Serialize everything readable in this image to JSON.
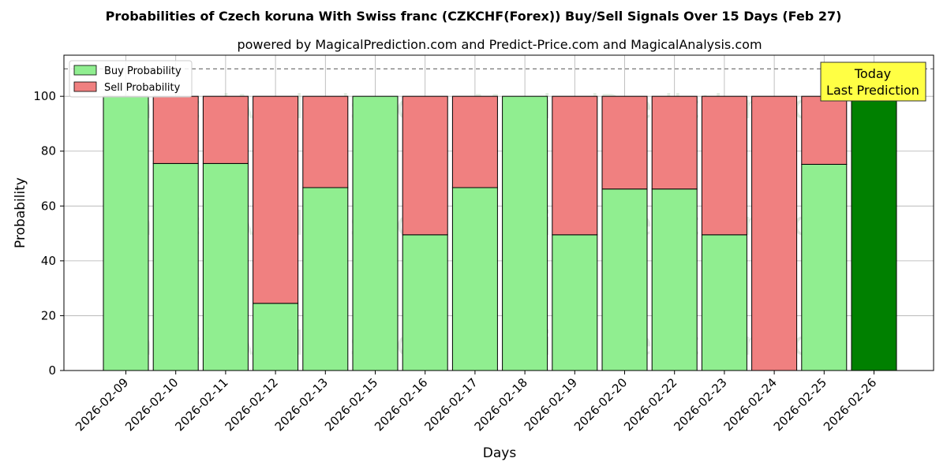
{
  "chart_data": {
    "type": "bar",
    "stacked": true,
    "title": "Probabilities of Czech koruna With Swiss franc (CZKCHF(Forex)) Buy/Sell Signals Over 15 Days (Feb 27)",
    "subtitle": "powered by MagicalPrediction.com and Predict-Price.com and MagicalAnalysis.com",
    "xlabel": "Days",
    "ylabel": "Probability",
    "ylim": [
      0,
      115
    ],
    "yticks": [
      0,
      20,
      40,
      60,
      80,
      100
    ],
    "reference_line": 110,
    "grid": true,
    "legend_position": "top-left",
    "categories": [
      "2026-02-09",
      "2026-02-10",
      "2026-02-11",
      "2026-02-12",
      "2026-02-13",
      "2026-02-15",
      "2026-02-16",
      "2026-02-17",
      "2026-02-18",
      "2026-02-19",
      "2026-02-20",
      "2026-02-22",
      "2026-02-23",
      "2026-02-24",
      "2026-02-25",
      "2026-02-26"
    ],
    "series": [
      {
        "name": "Buy Probability",
        "color": "#90ee90",
        "values": [
          100,
          75.5,
          75.5,
          24.5,
          66.7,
          100,
          49.5,
          66.7,
          100,
          49.5,
          66.2,
          66.2,
          49.5,
          0,
          75.2,
          100
        ]
      },
      {
        "name": "Sell Probability",
        "color": "#f08080",
        "values": [
          0,
          24.5,
          24.5,
          75.5,
          33.3,
          0,
          50.5,
          33.3,
          0,
          50.5,
          33.8,
          33.8,
          50.5,
          100,
          24.8,
          0
        ]
      }
    ],
    "highlight": {
      "index": 15,
      "color": "#008000"
    },
    "annotation": {
      "line1": "Today",
      "line2": "Last Prediction",
      "background": "#ffff44"
    },
    "watermarks": [
      "MagicalAnalysis.com",
      "MagicalPrediction.com"
    ]
  }
}
